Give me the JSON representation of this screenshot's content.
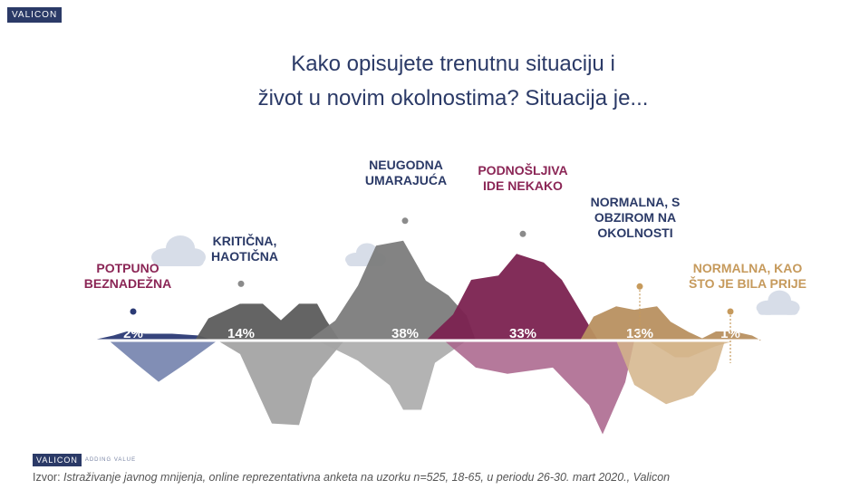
{
  "logo_top": "VALICON",
  "title_line1": "Kako opisujete trenutnu situaciju i",
  "title_line2": "život u novim okolnostima? Situacija je...",
  "chart_data": {
    "type": "area",
    "title": "Kako opisujete trenutnu situaciju i život u novim okolnostima? Situacija je...",
    "categories": [
      "POTPUNO BEZNADEŽNA",
      "KRITIČNA, HAOTIČNA",
      "NEUGODNA UMARAJUĆA",
      "PODNOŠLJIVA IDE NEKAKO",
      "NORMALNA, S OBZIROM NA OKOLNOSTI",
      "NORMALNA, KAO ŠTO JE BILA PRIJE"
    ],
    "values": [
      2,
      14,
      38,
      33,
      13,
      1
    ],
    "value_labels": [
      "2%",
      "14%",
      "38%",
      "33%",
      "13%",
      "1%"
    ],
    "label_lines": [
      [
        "POTPUNO",
        "BEZNADEŽNA"
      ],
      [
        "KRITIČNA,",
        "HAOTIČNA"
      ],
      [
        "NEUGODNA",
        "UMARAJUĆA"
      ],
      [
        "PODNOŠLJIVA",
        "IDE NEKAKO"
      ],
      [
        "NORMALNA, S",
        "OBZIROM NA",
        "OKOLNOSTI"
      ],
      [
        "NORMALNA, KAO",
        "ŠTO JE BILA PRIJE"
      ]
    ],
    "colors": [
      "#2b3a75",
      "#5c5c5c",
      "#7c7c7c",
      "#7b2250",
      "#b89060",
      "#b89060"
    ],
    "label_colors": [
      "#8b2656",
      "#2b3a67",
      "#2b3a67",
      "#8b2656",
      "#2b3a67",
      "#c69a5c"
    ],
    "ylim": [
      0,
      40
    ]
  },
  "footer_logo": "VALICON",
  "footer_tagline": "ADDING VALUE",
  "source_label": "Izvor:",
  "source_text": "Istraživanje javnog mnijenja, online reprezentativna anketa na uzorku n=525, 18-65, u periodu 26-30. mart 2020., Valicon"
}
